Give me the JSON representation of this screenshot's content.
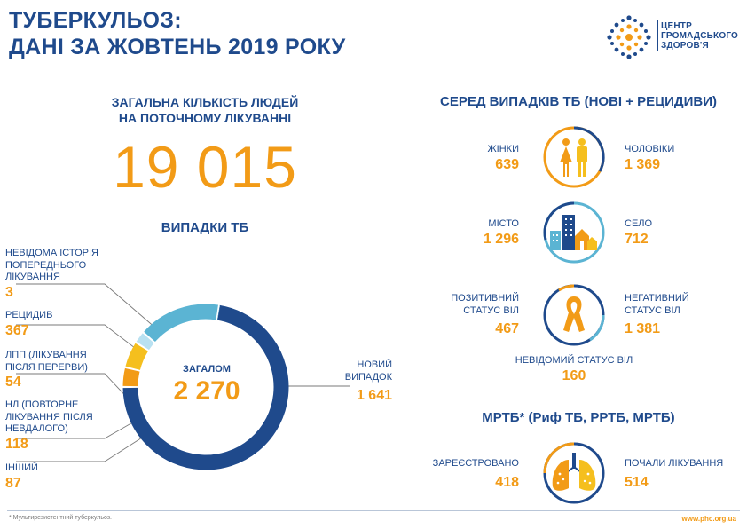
{
  "header": {
    "title_line1": "ТУБЕРКУЛЬОЗ:",
    "title_line2": "ДАНІ ЗА ЖОВТЕНЬ 2019 РОКУ",
    "logo_line1": "ЦЕНТР",
    "logo_line2": "ГРОМАДСЬКОГО",
    "logo_line3": "ЗДОРОВ'Я"
  },
  "treatment": {
    "label_line1": "ЗАГАЛЬНА КІЛЬКІСТЬ ЛЮДЕЙ",
    "label_line2": "НА ПОТОЧНОМУ ЛІКУВАННІ",
    "total": "19 015"
  },
  "chart_data": {
    "type": "pie",
    "title": "ВИПАДКИ ТБ",
    "center_label": "ЗАГАЛОМ",
    "center_value": "2 270",
    "total": 2270,
    "slices": [
      {
        "label_lines": [
          "НОВИЙ",
          "ВИПАДОК"
        ],
        "display": "1 641",
        "value": 1641,
        "color": "#1f4a8c"
      },
      {
        "label_lines": [
          "ІНШИЙ"
        ],
        "display": "87",
        "value": 87,
        "color": "#f29b17"
      },
      {
        "label_lines": [
          "НЛ (ПОВТОРНЕ",
          "ЛІКУВАННЯ ПІСЛЯ",
          "НЕВДАЛОГО)"
        ],
        "display": "118",
        "value": 118,
        "color": "#f5bf1e"
      },
      {
        "label_lines": [
          "ЛПП (ЛІКУВАННЯ",
          "ПІСЛЯ ПЕРЕРВИ)"
        ],
        "display": "54",
        "value": 54,
        "color": "#b9e1f1"
      },
      {
        "label_lines": [
          "РЕЦИДИВ"
        ],
        "display": "367",
        "value": 367,
        "color": "#5bb4d3"
      },
      {
        "label_lines": [
          "НЕВІДОМА ІСТОРІЯ",
          "ПОПЕРЕДНЬОГО",
          "ЛІКУВАННЯ"
        ],
        "display": "3",
        "value": 3,
        "color": "#5bb4d3"
      }
    ]
  },
  "cases": {
    "title": "СЕРЕД ВИПАДКІВ ТБ (НОВІ + РЕЦИДИВИ)",
    "women_label": "ЖІНКИ",
    "women_value": "639",
    "men_label": "ЧОЛОВІКИ",
    "men_value": "1 369",
    "city_label": "МІСТО",
    "city_value": "1 296",
    "village_label": "СЕЛО",
    "village_value": "712",
    "hiv_pos_line1": "ПОЗИТИВНИЙ",
    "hiv_pos_line2": "СТАТУС ВІЛ",
    "hiv_pos_value": "467",
    "hiv_neg_line1": "НЕГАТИВНИЙ",
    "hiv_neg_line2": "СТАТУС  ВІЛ",
    "hiv_neg_value": "1 381",
    "hiv_unknown_label": "НЕВІДОМИЙ СТАТУС ВІЛ",
    "hiv_unknown_value": "160",
    "ring_colors": {
      "navy": "#1f4a8c",
      "orange": "#f29b17",
      "light": "#5bb4d3"
    },
    "icons": [
      "people-icon",
      "city-icon",
      "ribbon-icon",
      "lungs-icon"
    ]
  },
  "mdr": {
    "title": "МРТБ* (Риф ТБ, РРТБ, МРТБ)",
    "registered_label": "ЗАРЕЄСТРОВАНО",
    "registered_value": "418",
    "treated_label": "ПОЧАЛИ ЛІКУВАННЯ",
    "treated_value": "514"
  },
  "footer": {
    "note": "* Мультирезистентний туберкульоз.",
    "url": "www.phc.org.ua"
  }
}
